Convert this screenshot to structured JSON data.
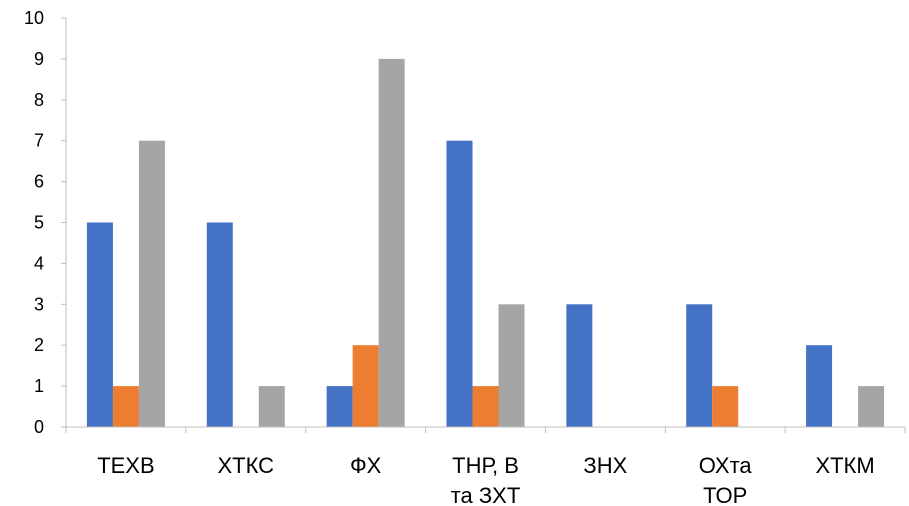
{
  "chart_data": {
    "type": "bar",
    "title": "",
    "xlabel": "",
    "ylabel": "",
    "ylim": [
      0,
      10
    ],
    "yticks": [
      "0",
      "1",
      "2",
      "3",
      "4",
      "5",
      "6",
      "7",
      "8",
      "9",
      "10"
    ],
    "grid": false,
    "legend": "none",
    "categories": [
      [
        "ТЕХВ"
      ],
      [
        "ХТКС"
      ],
      [
        "ФХ"
      ],
      [
        "ТНР, В",
        "та ЗХТ"
      ],
      [
        "ЗНХ"
      ],
      [
        "ОХта",
        "ТОР"
      ],
      [
        "ХТКМ"
      ]
    ],
    "series": [
      {
        "color": "#4472C4",
        "values": [
          5,
          5,
          1,
          7,
          3,
          3,
          2
        ]
      },
      {
        "color": "#ED7D31",
        "values": [
          1,
          0,
          2,
          1,
          0,
          1,
          0
        ]
      },
      {
        "color": "#A5A5A5",
        "values": [
          7,
          1,
          9,
          3,
          0,
          0,
          1
        ]
      }
    ]
  }
}
